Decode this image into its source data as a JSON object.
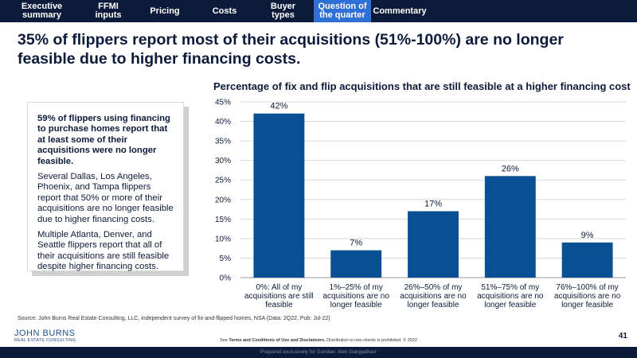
{
  "nav": {
    "items": [
      {
        "label": "Executive\nsummary",
        "active": false
      },
      {
        "label": "FFMI\ninputs",
        "active": false
      },
      {
        "label": "Pricing",
        "active": false
      },
      {
        "label": "Costs",
        "active": false
      },
      {
        "label": "Buyer\ntypes",
        "active": false
      },
      {
        "label": "Question of\nthe quarter",
        "active": true
      },
      {
        "label": "Commentary",
        "active": false
      }
    ]
  },
  "headline": "35% of flippers report most of their acquisitions (51%-100%) are no longer feasible due to higher financing costs.",
  "callout": {
    "lead": "59% of flippers using financing to purchase homes report that at least some of their acquisitions were no longer feasible.",
    "p2": "Several Dallas, Los Angeles, Phoenix, and Tampa flippers report that 50% or more of their acquisitions are no longer feasible due to higher financing costs.",
    "p3": "Multiple Atlanta, Denver, and Seattle flippers report that all of their acquisitions are still feasible despite higher financing costs."
  },
  "chart_data": {
    "type": "bar",
    "title": "Percentage of fix and flip acquisitions that are still feasible at a higher financing cost",
    "categories": [
      [
        "0%: All of my",
        "acquisitions are still",
        "feasible"
      ],
      [
        "1%–25% of my",
        "acquisitions are no",
        "longer feasible"
      ],
      [
        "26%–50% of my",
        "acquisitions are no",
        "longer feasible"
      ],
      [
        "51%–75% of my",
        "acquisitions are no",
        "longer feasible"
      ],
      [
        "76%–100% of my",
        "acquisitions are no",
        "longer feasible"
      ]
    ],
    "values": [
      42,
      7,
      17,
      26,
      9
    ],
    "value_labels": [
      "42%",
      "7%",
      "17%",
      "26%",
      "9%"
    ],
    "ylim": [
      0,
      45
    ],
    "yticks": [
      0,
      5,
      10,
      15,
      20,
      25,
      30,
      35,
      40,
      45
    ],
    "ytick_labels": [
      "0%",
      "5%",
      "10%",
      "15%",
      "20%",
      "25%",
      "30%",
      "35%",
      "40%",
      "45%"
    ],
    "grid": true,
    "bar_color": "#0a4f94",
    "grid_color": "#d9d9d9"
  },
  "footer": {
    "source": "Source: John Burns Real Estate Consulting, LLC, independent survey of fix-and-flipped homes, NSA (Data: 2Q22, Pub: Jul-22)",
    "logo_line1": "JOHN BURNS",
    "logo_line2": "REAL ESTATE CONSULTING",
    "terms_prefix": "See ",
    "terms_bold": "Terms and Conditions of Use and Disclaimers.",
    "terms_suffix": " Distribution to non-clients is prohibited. © 2022",
    "page_number": "41",
    "prepared": "Prepared exclusively for Sundae: Alek Gangadharr"
  },
  "colors": {
    "navy": "#0d1b3a",
    "nav_active": "#2e6fd8"
  }
}
